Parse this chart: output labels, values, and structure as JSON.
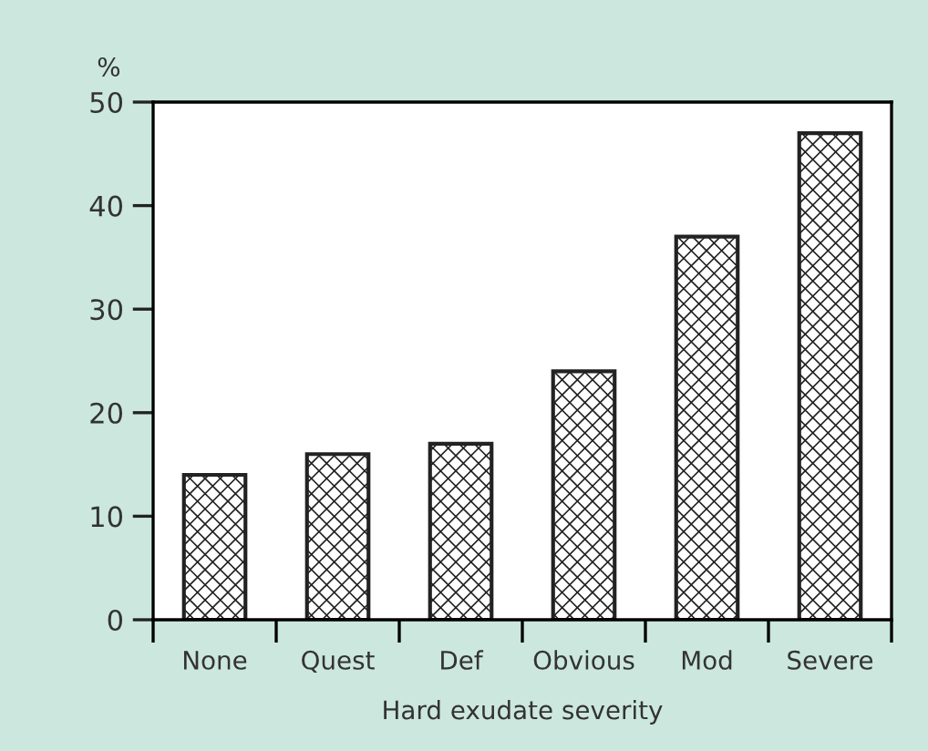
{
  "chart_data": {
    "type": "bar",
    "ylabel": "%",
    "xlabel": "Hard exudate severity",
    "categories": [
      "None",
      "Quest",
      "Def",
      "Obvious",
      "Mod",
      "Severe"
    ],
    "values": [
      14,
      16,
      17,
      24,
      37,
      47
    ],
    "color": "#222222",
    "ylim": [
      0,
      50
    ],
    "yticks": [
      0,
      10,
      20,
      30,
      40,
      50
    ],
    "grid": false,
    "legend": false
  }
}
